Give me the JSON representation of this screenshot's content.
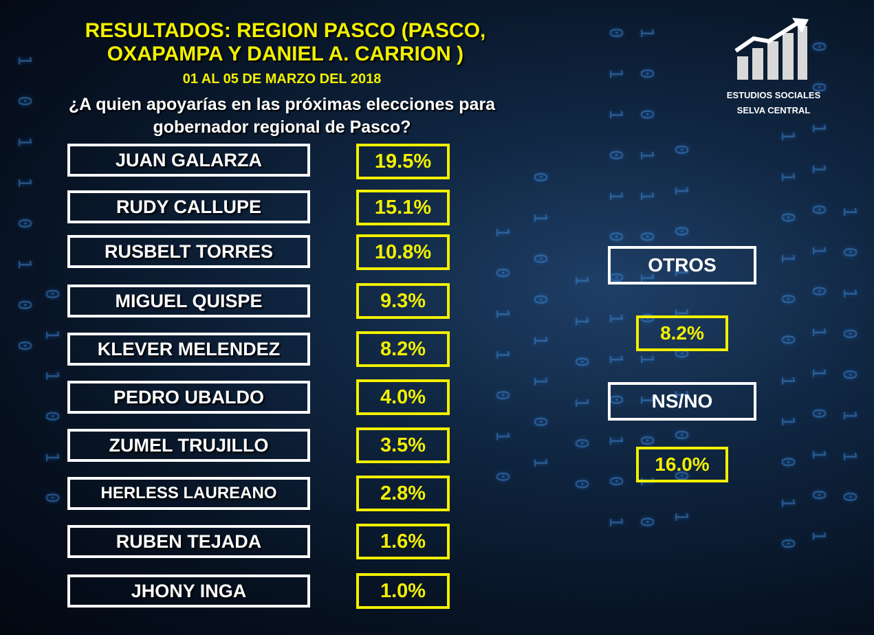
{
  "header": {
    "title_line1": "RESULTADOS: REGION PASCO (PASCO,",
    "title_line2": "OXAPAMPA Y DANIEL A. CARRION )",
    "date": "01 AL 05 DE MARZO DEL 2018",
    "question_line1": "¿A quien apoyarías en las próximas elecciones para",
    "question_line2": "gobernador regional de Pasco?"
  },
  "brand": {
    "line1": "ESTUDIOS SOCIALES",
    "line2": "SELVA CENTRAL",
    "logo_icon": "bar-chart-arrow-icon"
  },
  "candidates": [
    {
      "name": "JUAN GALARZA",
      "pct": "19.5%"
    },
    {
      "name": "RUDY CALLUPE",
      "pct": "15.1%"
    },
    {
      "name": "RUSBELT TORRES",
      "pct": "10.8%"
    },
    {
      "name": "MIGUEL QUISPE",
      "pct": "9.3%"
    },
    {
      "name": "KLEVER MELENDEZ",
      "pct": "8.2%"
    },
    {
      "name": "PEDRO UBALDO",
      "pct": "4.0%"
    },
    {
      "name": "ZUMEL TRUJILLO",
      "pct": "3.5%"
    },
    {
      "name": "HERLESS LAUREANO",
      "pct": "2.8%"
    },
    {
      "name": "RUBEN TEJADA",
      "pct": "1.6%"
    },
    {
      "name": "JHONY INGA",
      "pct": "1.0%"
    }
  ],
  "others": {
    "label": "OTROS",
    "pct": "8.2%"
  },
  "undecided": {
    "label": "NS/NO",
    "pct": "16.0%"
  },
  "colors": {
    "accent": "#f2f000",
    "text": "#ffffff",
    "background": "#0b1a2e"
  }
}
